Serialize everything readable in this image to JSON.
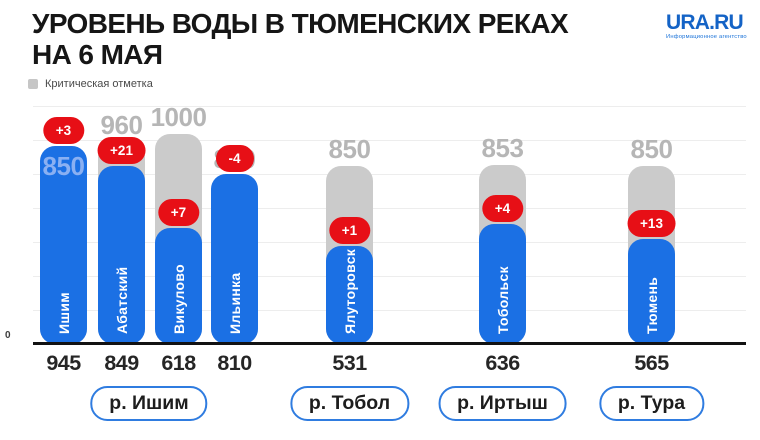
{
  "header": {
    "title_line1": "УРОВЕНЬ ВОДЫ В ТЮМЕНСКИХ РЕКАХ",
    "title_line2": "НА 6 МАЯ",
    "logo_name": "URA.RU",
    "logo_tagline": "Информационное агентство"
  },
  "legend": {
    "critical_label": "Критическая отметка"
  },
  "axis": {
    "zero_label": "0"
  },
  "colors": {
    "bar_blue": "#1b70e4",
    "critical_gray": "#cbcbcb",
    "badge_red": "#e70f16",
    "critical_label_gray": "#b6b6b6",
    "inside_label_blue": "#8ab0f2",
    "logo_blue": "#1463c6"
  },
  "chart_data": {
    "type": "bar",
    "title": "УРОВЕНЬ ВОДЫ В ТЮМЕНСКИХ РЕКАХ НА 6 МАЯ",
    "legend_entries": [
      "Критическая отметка"
    ],
    "ylim": [
      0,
      1000
    ],
    "grid": true,
    "legend_position": "top-left",
    "categories": [
      "Ишим",
      "Абатский",
      "Викулово",
      "Ильинка",
      "Ялуторовск",
      "Тобольск",
      "Тюмень"
    ],
    "series": [
      {
        "name": "Уровень воды",
        "values": [
          945,
          849,
          618,
          810,
          531,
          636,
          565
        ]
      },
      {
        "name": "Критическая отметка",
        "values": [
          850,
          960,
          1000,
          800,
          850,
          853,
          850
        ]
      }
    ],
    "change_labels": [
      "+3",
      "+21",
      "+7",
      "-4",
      "+1",
      "+4",
      "+13"
    ],
    "stations": [
      {
        "city": "Ишим",
        "river": "р. Ишим",
        "level": 945,
        "critical": 850,
        "change": "+3"
      },
      {
        "city": "Абатский",
        "river": "р. Ишим",
        "level": 849,
        "critical": 960,
        "change": "+21"
      },
      {
        "city": "Викулово",
        "river": "р. Ишим",
        "level": 618,
        "critical": 1000,
        "change": "+7"
      },
      {
        "city": "Ильинка",
        "river": "р. Ишим",
        "level": 810,
        "critical": 800,
        "change": "-4"
      },
      {
        "city": "Ялуторовск",
        "river": "р. Тобол",
        "level": 531,
        "critical": 850,
        "change": "+1"
      },
      {
        "city": "Тобольск",
        "river": "р. Иртыш",
        "level": 636,
        "critical": 853,
        "change": "+4"
      },
      {
        "city": "Тюмень",
        "river": "р. Тура",
        "level": 565,
        "critical": 850,
        "change": "+13"
      }
    ],
    "groups": [
      {
        "label": "р. Ишим",
        "stations": [
          "Ишим",
          "Абатский",
          "Викулово",
          "Ильинка"
        ]
      },
      {
        "label": "р. Тобол",
        "stations": [
          "Ялуторовск"
        ]
      },
      {
        "label": "р. Иртыш",
        "stations": [
          "Тобольск"
        ]
      },
      {
        "label": "р. Тура",
        "stations": [
          "Тюмень"
        ]
      }
    ]
  }
}
